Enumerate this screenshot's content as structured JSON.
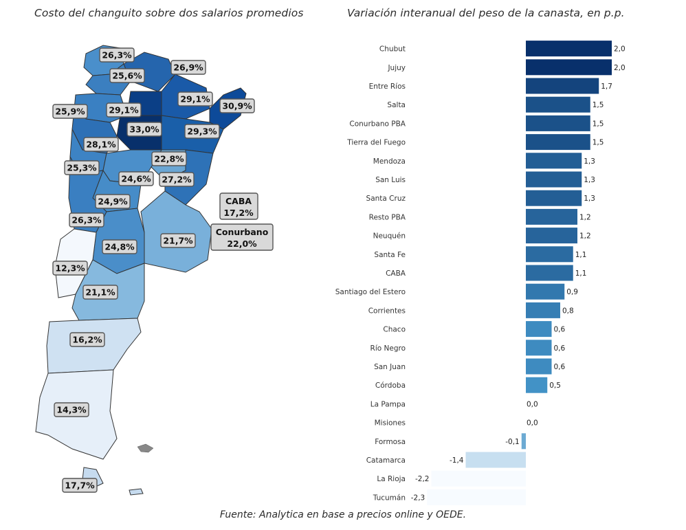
{
  "map": {
    "title": "Costo del changuito sobre dos salarios promedios",
    "regions": [
      {
        "name": "",
        "value": "26,3%",
        "color": "#4a8fcb"
      },
      {
        "name": "",
        "value": "25,6%",
        "color": "#3b7fc0"
      },
      {
        "name": "",
        "value": "26,9%",
        "color": "#2565ad"
      },
      {
        "name": "",
        "value": "29,1%",
        "color": "#0b3f86"
      },
      {
        "name": "",
        "value": "29,1%",
        "color": "#1a5aa8"
      },
      {
        "name": "",
        "value": "30,9%",
        "color": "#0d4a99"
      },
      {
        "name": "",
        "value": "25,9%",
        "color": "#3a80c2"
      },
      {
        "name": "",
        "value": "33,0%",
        "color": "#08306b"
      },
      {
        "name": "",
        "value": "29,3%",
        "color": "#1a5fa9"
      },
      {
        "name": "",
        "value": "28,1%",
        "color": "#2d70b6"
      },
      {
        "name": "",
        "value": "22,8%",
        "color": "#6aa6d4"
      },
      {
        "name": "",
        "value": "25,3%",
        "color": "#3d83c4"
      },
      {
        "name": "",
        "value": "24,6%",
        "color": "#4b8fca"
      },
      {
        "name": "",
        "value": "27,2%",
        "color": "#2e72b7"
      },
      {
        "name": "",
        "value": "24,9%",
        "color": "#468cc8"
      },
      {
        "name": "",
        "value": "26,3%",
        "color": "#3a7fc1"
      },
      {
        "name": "",
        "value": "24,8%",
        "color": "#4a8ec9"
      },
      {
        "name": "",
        "value": "21,7%",
        "color": "#79b0da"
      },
      {
        "name": "",
        "value": "12,3%",
        "color": "#f4f8fd"
      },
      {
        "name": "",
        "value": "21,1%",
        "color": "#86b9de"
      },
      {
        "name": "",
        "value": "16,2%",
        "color": "#cfe1f2"
      },
      {
        "name": "",
        "value": "14,3%",
        "color": "#e6eff9"
      },
      {
        "name": "",
        "value": "17,7%",
        "color": "#c6dbef"
      }
    ],
    "callouts": [
      {
        "name": "CABA",
        "value": "17,2%"
      },
      {
        "name": "Conurbano",
        "value": "22,0%"
      }
    ]
  },
  "chart_data": {
    "type": "bar",
    "orientation": "horizontal",
    "title": "Variación interanual del peso de la canasta, en p.p.",
    "categories": [
      "Chubut",
      "Jujuy",
      "Entre Ríos",
      "Salta",
      "Conurbano PBA",
      "Tierra del Fuego",
      "Mendoza",
      "San Luis",
      "Santa Cruz",
      "Resto PBA",
      "Neuquén",
      "Santa Fe",
      "CABA",
      "Santiago del Estero",
      "Corrientes",
      "Chaco",
      "Río Negro",
      "San Juan",
      "Córdoba",
      "La Pampa",
      "Misiones",
      "Formosa",
      "Catamarca",
      "La Rioja",
      "Tucumán"
    ],
    "values": [
      2.0,
      2.0,
      1.7,
      1.5,
      1.5,
      1.5,
      1.3,
      1.3,
      1.3,
      1.2,
      1.2,
      1.1,
      1.1,
      0.9,
      0.8,
      0.6,
      0.6,
      0.6,
      0.5,
      0.0,
      0.0,
      -0.1,
      -1.4,
      -2.2,
      -2.3
    ],
    "value_labels": [
      "2,0",
      "2,0",
      "1,7",
      "1,5",
      "1,5",
      "1,5",
      "1,3",
      "1,3",
      "1,3",
      "1,2",
      "1,2",
      "1,1",
      "1,1",
      "0,9",
      "0,8",
      "0,6",
      "0,6",
      "0,6",
      "0,5",
      "0,0",
      "0,0",
      "-0,1",
      "-1,4",
      "-2,2",
      "-2,3"
    ],
    "xlim": [
      -2.3,
      2.0
    ],
    "colors": {
      "max": "#08306b",
      "mid": "#4292c6",
      "min": "#f7fbff"
    },
    "grid": false,
    "legend": "none"
  },
  "source": "Fuente: Analytica en base a precios online y OEDE."
}
